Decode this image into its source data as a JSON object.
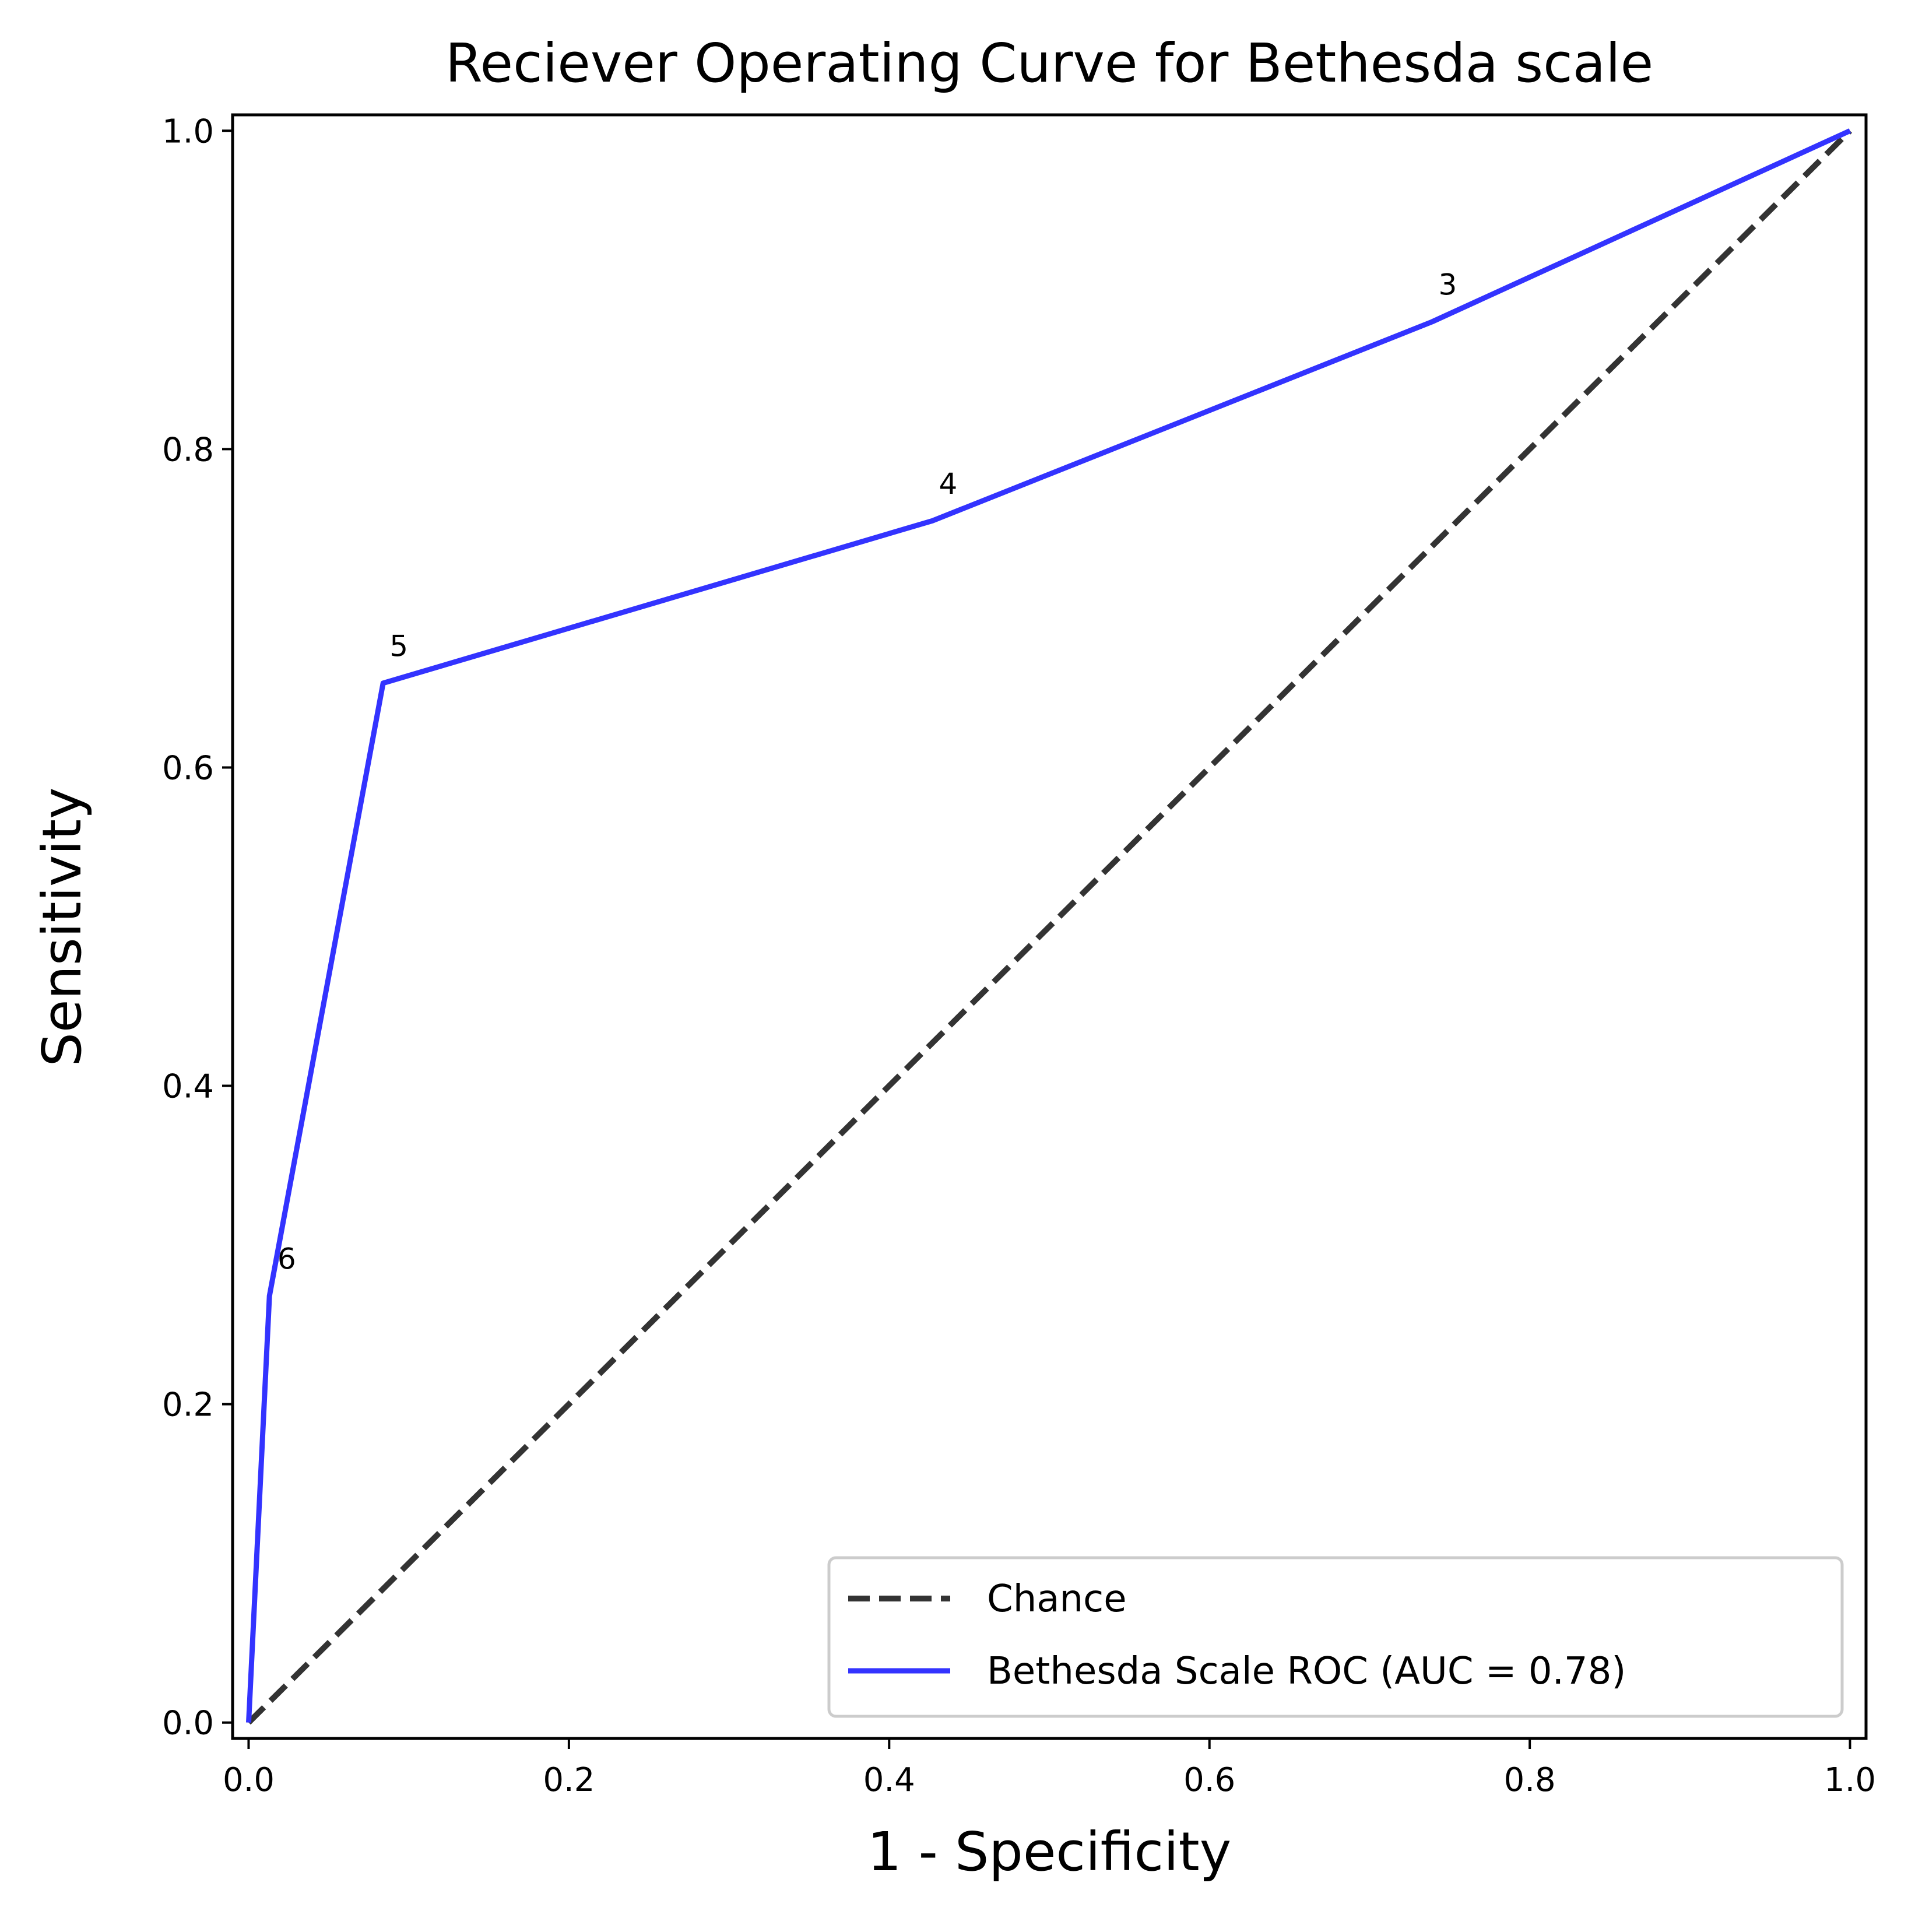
{
  "chart_data": {
    "type": "line",
    "title": "Reciever Operating Curve for Bethesda scale",
    "xlabel": "1 - Specificity",
    "ylabel": "Sensitivity",
    "xlim": [
      -0.01,
      1.01
    ],
    "ylim": [
      -0.01,
      1.01
    ],
    "xticks": [
      0.0,
      0.2,
      0.4,
      0.6,
      0.8,
      1.0
    ],
    "xtick_labels": [
      "0.0",
      "0.2",
      "0.4",
      "0.6",
      "0.8",
      "1.0"
    ],
    "yticks": [
      0.0,
      0.2,
      0.4,
      0.6,
      0.8,
      1.0
    ],
    "ytick_labels": [
      "0.0",
      "0.2",
      "0.4",
      "0.6",
      "0.8",
      "1.0"
    ],
    "grid": false,
    "legend_position": "lower-right",
    "series": [
      {
        "name": "Chance",
        "style": "dashed",
        "color": "#333333",
        "x": [
          0.0,
          1.0
        ],
        "y": [
          0.0,
          1.0
        ]
      },
      {
        "name": "Bethesda Scale ROC (AUC = 0.78)",
        "style": "solid",
        "color": "#3333ff",
        "x": [
          0.0,
          0.013,
          0.084,
          0.427,
          0.739,
          1.0
        ],
        "y": [
          0.0,
          0.268,
          0.653,
          0.755,
          0.88,
          1.0
        ]
      }
    ],
    "annotations": [
      {
        "text": "6",
        "x": 0.018,
        "y": 0.285
      },
      {
        "text": "5",
        "x": 0.088,
        "y": 0.67
      },
      {
        "text": "4",
        "x": 0.431,
        "y": 0.772
      },
      {
        "text": "3",
        "x": 0.743,
        "y": 0.897
      }
    ]
  }
}
